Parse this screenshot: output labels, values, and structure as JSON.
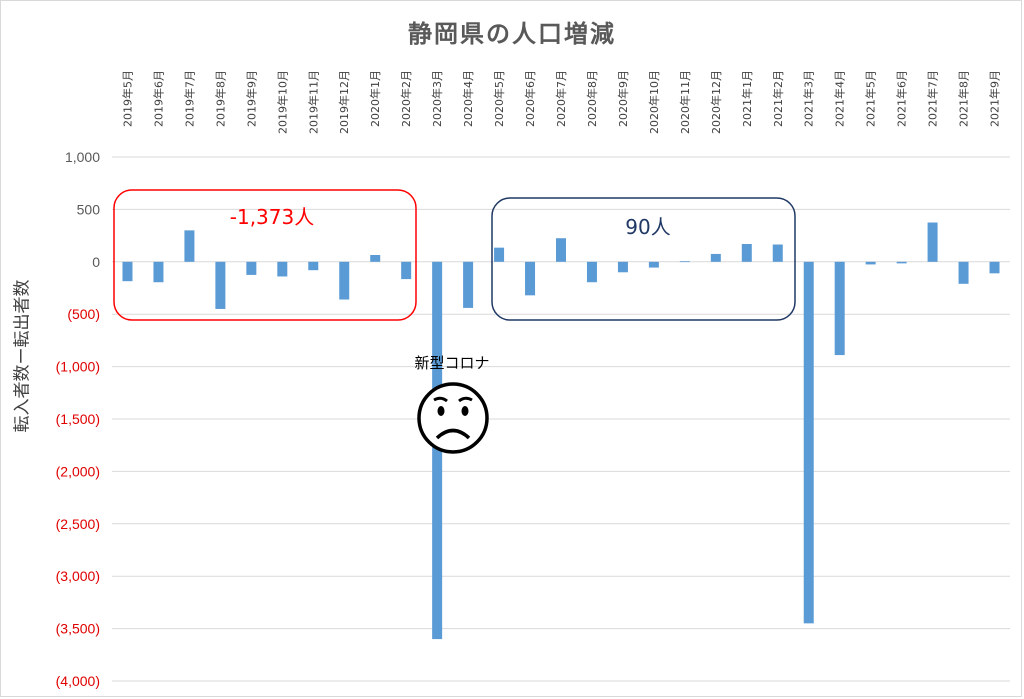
{
  "chart_data": {
    "type": "bar",
    "title": "静岡県の人口増減",
    "ylabel": "転入者数ー転出者数",
    "xlabel": "",
    "ylim": [
      -4000,
      1000
    ],
    "yticks": [
      {
        "value": 1000,
        "label": "1,000"
      },
      {
        "value": 500,
        "label": "500"
      },
      {
        "value": 0,
        "label": "0"
      },
      {
        "value": -500,
        "label": "(500)"
      },
      {
        "value": -1000,
        "label": "(1,000)"
      },
      {
        "value": -1500,
        "label": "(1,500)"
      },
      {
        "value": -2000,
        "label": "(2,000)"
      },
      {
        "value": -2500,
        "label": "(2,500)"
      },
      {
        "value": -3000,
        "label": "(3,000)"
      },
      {
        "value": -3500,
        "label": "(3,500)"
      },
      {
        "value": -4000,
        "label": "(4,000)"
      }
    ],
    "grid": true,
    "legend": "none",
    "categories": [
      "2019年5月",
      "2019年6月",
      "2019年7月",
      "2019年8月",
      "2019年9月",
      "2019年10月",
      "2019年11月",
      "2019年12月",
      "2020年1月",
      "2020年2月",
      "2020年3月",
      "2020年4月",
      "2020年5月",
      "2020年6月",
      "2020年7月",
      "2020年8月",
      "2020年9月",
      "2020年10月",
      "2020年11月",
      "2020年12月",
      "2021年1月",
      "2021年2月",
      "2021年3月",
      "2021年4月",
      "2021年5月",
      "2021年6月",
      "2021年7月",
      "2021年8月",
      "2021年9月"
    ],
    "values": [
      -185,
      -195,
      300,
      -450,
      -125,
      -140,
      -80,
      -360,
      65,
      -165,
      -3600,
      -440,
      135,
      -320,
      225,
      -195,
      -100,
      -55,
      5,
      75,
      170,
      165,
      -3450,
      -890,
      -25,
      -15,
      375,
      -210,
      -110
    ],
    "bar_color": "#5b9bd5",
    "positive_tick_color": "#595959",
    "negative_tick_color": "#e00000",
    "annotations": [
      {
        "text": "-1,373人",
        "color": "#ff0000",
        "box_color": "#ff0000"
      },
      {
        "text": "90人",
        "color": "#1f3864",
        "box_color": "#1f3864"
      },
      {
        "text": "新型コロナ",
        "color": "#000000"
      }
    ]
  }
}
